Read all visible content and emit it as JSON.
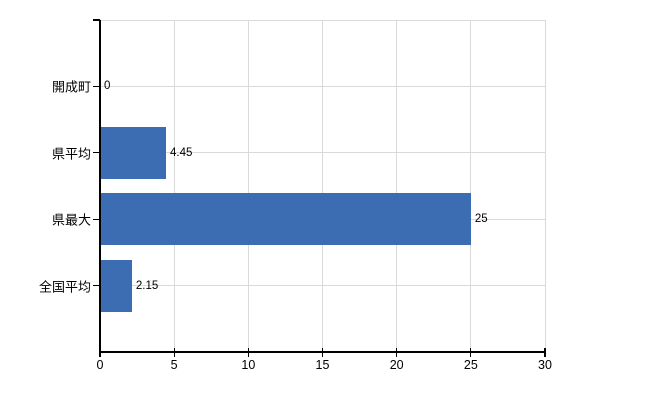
{
  "chart_data": {
    "type": "bar",
    "orientation": "horizontal",
    "title": "",
    "xlabel": "",
    "ylabel": "",
    "categories": [
      "開成町",
      "県平均",
      "県最大",
      "全国平均"
    ],
    "values": [
      0,
      4.45,
      25,
      2.15
    ],
    "value_labels": [
      "0",
      "4.45",
      "25",
      "2.15"
    ],
    "xlim": [
      0,
      30
    ],
    "x_ticks": [
      0,
      5,
      10,
      15,
      20,
      25,
      30
    ],
    "x_tick_labels": [
      "0",
      "5",
      "10",
      "15",
      "20",
      "25",
      "30"
    ],
    "grid": true,
    "legend_position": "none",
    "bar_color": "#3c6cb2",
    "grid_color": "#d9d9d9",
    "axis_color": "#000000",
    "text_color": "#000000",
    "background_color": "#ffffff"
  }
}
